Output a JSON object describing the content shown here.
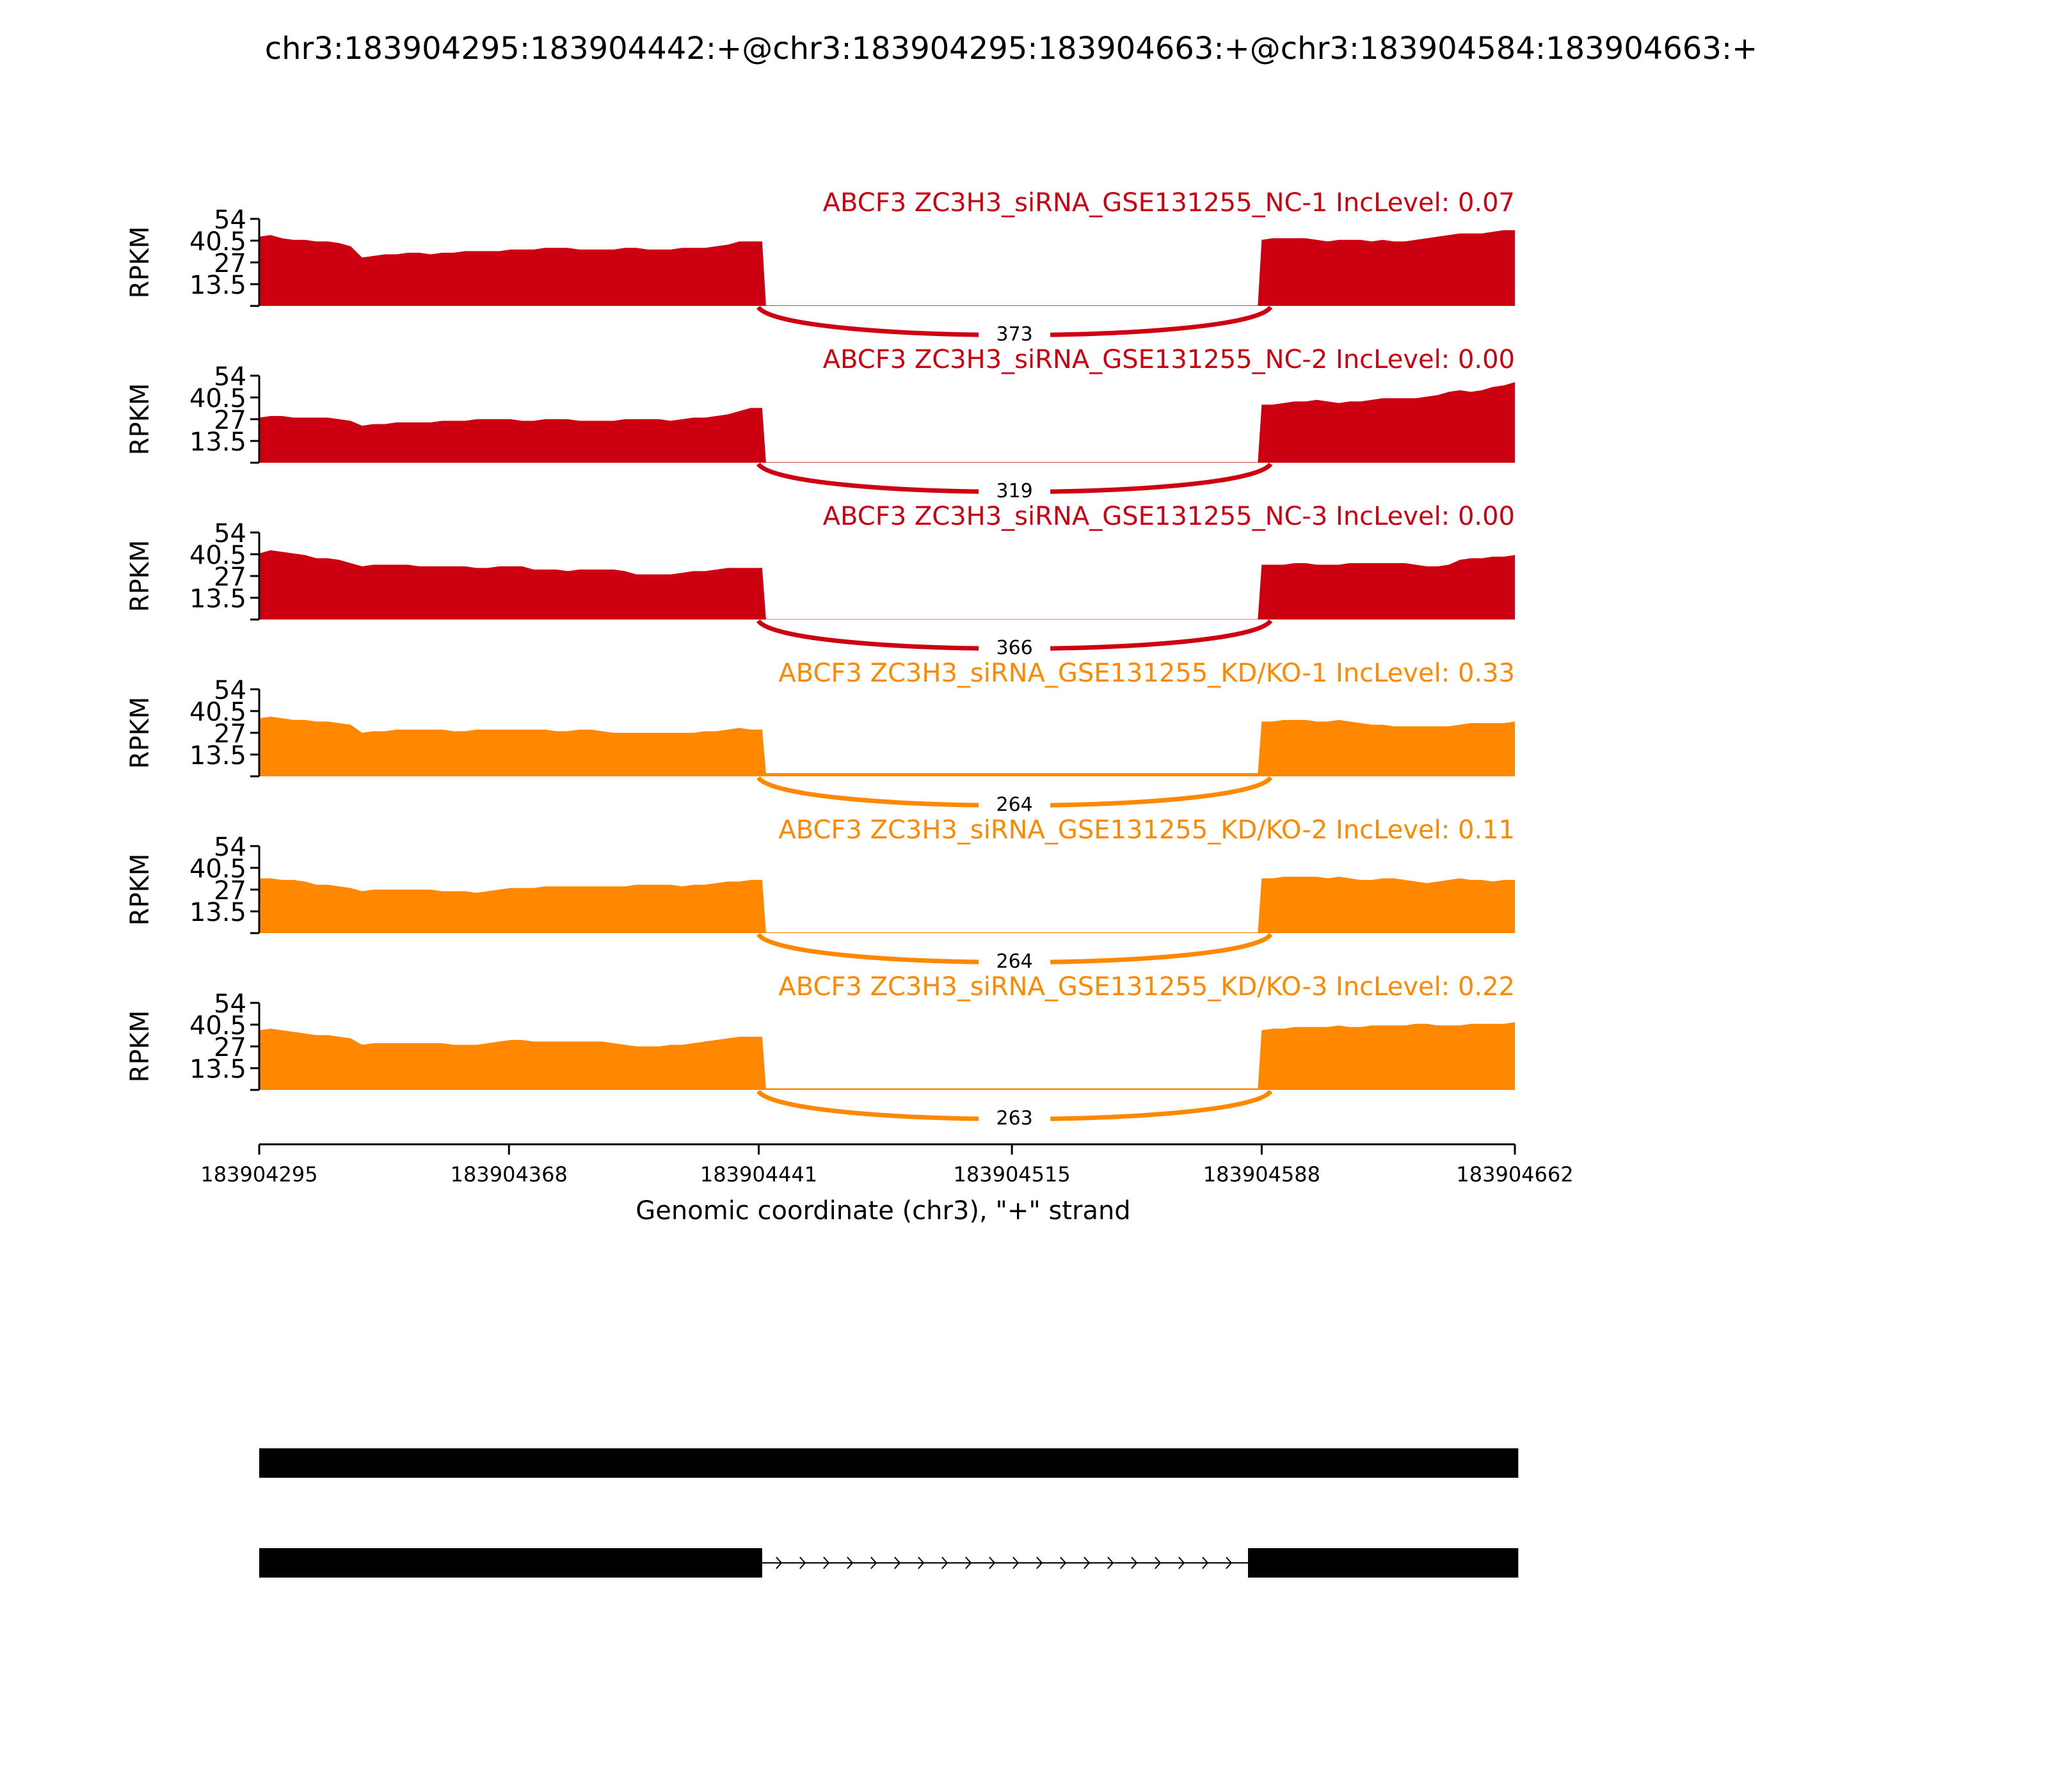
{
  "title": "chr3:183904295:183904442:+@chr3:183904295:183904663:+@chr3:183904584:183904663:+",
  "colors": {
    "nc": "#CC0011",
    "kd": "#FF8800",
    "axis": "#000000",
    "gene": "#000000"
  },
  "chart_data": {
    "type": "area",
    "xlabel": "Genomic coordinate (chr3), \"+\" strand",
    "x_range": [
      183904295,
      183904662
    ],
    "xticks": [
      "183904295",
      "183904368",
      "183904441",
      "183904515",
      "183904588",
      "183904662"
    ],
    "y_axis_label": "RPKM",
    "yticks": [
      "13.5",
      "27",
      "40.5",
      "54"
    ],
    "ylim": [
      0,
      54
    ],
    "exon1": [
      183904295,
      183904442
    ],
    "exon2": [
      183904588,
      183904663
    ],
    "tracks": [
      {
        "title": "ABCF3 ZC3H3_siRNA_GSE131255_NC-1 IncLevel: 0.07",
        "group": "nc",
        "exon1_profile": [
          43,
          44,
          42,
          41,
          41,
          40,
          40,
          39,
          37,
          30,
          31,
          32,
          32,
          33,
          33,
          32,
          33,
          33,
          34,
          34,
          34,
          34,
          35,
          35,
          35,
          36,
          36,
          36,
          35,
          35,
          35,
          35,
          36,
          36,
          35,
          35,
          35,
          36,
          36,
          36,
          37,
          38,
          40,
          40,
          40
        ],
        "exon2_profile": [
          41,
          42,
          42,
          42,
          42,
          41,
          40,
          41,
          41,
          41,
          40,
          41,
          40,
          40,
          41,
          42,
          43,
          44,
          45,
          45,
          45,
          46,
          47,
          47
        ],
        "skip_level": 0.3,
        "junction_count": "373"
      },
      {
        "title": "ABCF3 ZC3H3_siRNA_GSE131255_NC-2 IncLevel: 0.00",
        "group": "nc",
        "exon1_profile": [
          28,
          29,
          29,
          28,
          28,
          28,
          28,
          27,
          26,
          23,
          24,
          24,
          25,
          25,
          25,
          25,
          26,
          26,
          26,
          27,
          27,
          27,
          27,
          26,
          26,
          27,
          27,
          27,
          26,
          26,
          26,
          26,
          27,
          27,
          27,
          27,
          26,
          27,
          28,
          28,
          29,
          30,
          32,
          34,
          34
        ],
        "exon2_profile": [
          36,
          36,
          37,
          38,
          38,
          39,
          38,
          37,
          38,
          38,
          39,
          40,
          40,
          40,
          40,
          41,
          42,
          44,
          45,
          44,
          45,
          47,
          48,
          50
        ],
        "skip_level": 0.3,
        "junction_count": "319"
      },
      {
        "title": "ABCF3 ZC3H3_siRNA_GSE131255_NC-3 IncLevel: 0.00",
        "group": "nc",
        "exon1_profile": [
          41,
          43,
          42,
          41,
          40,
          38,
          38,
          37,
          35,
          33,
          34,
          34,
          34,
          34,
          33,
          33,
          33,
          33,
          33,
          32,
          32,
          33,
          33,
          33,
          31,
          31,
          31,
          30,
          31,
          31,
          31,
          31,
          30,
          28,
          28,
          28,
          28,
          29,
          30,
          30,
          31,
          32,
          32,
          32,
          32
        ],
        "exon2_profile": [
          34,
          34,
          34,
          35,
          35,
          34,
          34,
          34,
          35,
          35,
          35,
          35,
          35,
          35,
          34,
          33,
          33,
          34,
          37,
          38,
          38,
          39,
          39,
          40
        ],
        "skip_level": 0.2,
        "junction_count": "366"
      },
      {
        "title": "ABCF3 ZC3H3_siRNA_GSE131255_KD/KO-1 IncLevel: 0.33",
        "group": "kd",
        "exon1_profile": [
          36,
          37,
          36,
          35,
          35,
          34,
          34,
          33,
          32,
          27,
          28,
          28,
          29,
          29,
          29,
          29,
          29,
          28,
          28,
          29,
          29,
          29,
          29,
          29,
          29,
          29,
          28,
          28,
          29,
          29,
          28,
          27,
          27,
          27,
          27,
          27,
          27,
          27,
          27,
          28,
          28,
          29,
          30,
          29,
          29
        ],
        "exon2_profile": [
          34,
          34,
          35,
          35,
          35,
          34,
          34,
          35,
          34,
          33,
          32,
          32,
          31,
          31,
          31,
          31,
          31,
          31,
          32,
          33,
          33,
          33,
          33,
          34
        ],
        "skip_level": 2,
        "junction_count": "264"
      },
      {
        "title": "ABCF3 ZC3H3_siRNA_GSE131255_KD/KO-2 IncLevel: 0.11",
        "group": "kd",
        "exon1_profile": [
          34,
          34,
          33,
          33,
          32,
          30,
          30,
          29,
          28,
          26,
          27,
          27,
          27,
          27,
          27,
          27,
          26,
          26,
          26,
          25,
          26,
          27,
          28,
          28,
          28,
          29,
          29,
          29,
          29,
          29,
          29,
          29,
          29,
          30,
          30,
          30,
          30,
          29,
          30,
          30,
          31,
          32,
          32,
          33,
          33
        ],
        "exon2_profile": [
          34,
          34,
          35,
          35,
          35,
          35,
          34,
          35,
          34,
          33,
          33,
          34,
          34,
          33,
          32,
          31,
          32,
          33,
          34,
          33,
          33,
          32,
          33,
          33
        ],
        "skip_level": 0.5,
        "junction_count": "264"
      },
      {
        "title": "ABCF3 ZC3H3_siRNA_GSE131255_KD/KO-3 IncLevel: 0.22",
        "group": "kd",
        "exon1_profile": [
          37,
          38,
          37,
          36,
          35,
          34,
          34,
          33,
          32,
          28,
          29,
          29,
          29,
          29,
          29,
          29,
          29,
          28,
          28,
          28,
          29,
          30,
          31,
          31,
          30,
          30,
          30,
          30,
          30,
          30,
          30,
          29,
          28,
          27,
          27,
          27,
          28,
          28,
          29,
          30,
          31,
          32,
          33,
          33,
          33
        ],
        "exon2_profile": [
          37,
          38,
          38,
          39,
          39,
          39,
          39,
          40,
          39,
          39,
          40,
          40,
          40,
          40,
          41,
          41,
          40,
          40,
          40,
          41,
          41,
          41,
          41,
          42
        ],
        "skip_level": 1.0,
        "junction_count": "263"
      }
    ]
  },
  "gene_models": [
    {
      "label": "",
      "segments": [
        [
          183904295,
          183904663
        ]
      ]
    },
    {
      "label": "",
      "segments": [
        [
          183904295,
          183904442
        ],
        [
          183904584,
          183904663
        ]
      ]
    }
  ]
}
